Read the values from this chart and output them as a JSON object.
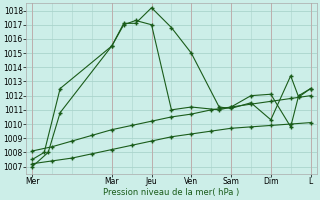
{
  "title": "Pression niveau de la mer( hPa )",
  "bg_color": "#cceee8",
  "grid_color": "#aad4cc",
  "line_color": "#1a5c1a",
  "ylim": [
    1006.5,
    1018.5
  ],
  "yticks": [
    1007,
    1008,
    1009,
    1010,
    1011,
    1012,
    1013,
    1014,
    1015,
    1016,
    1017,
    1018
  ],
  "xlabels": [
    "Mer",
    "Mar",
    "Jeu",
    "Ven",
    "Sam",
    "Dim",
    "L"
  ],
  "x_positions": [
    0,
    2,
    3,
    4,
    5,
    6,
    7
  ],
  "line1_x": [
    0,
    0.4,
    0.7,
    2.0,
    2.3,
    2.6,
    3.0,
    3.5,
    4.0,
    4.7,
    5.0,
    5.5,
    6.0,
    6.5,
    6.7,
    7.0
  ],
  "line1_y": [
    1007.0,
    1008.0,
    1010.8,
    1015.5,
    1017.1,
    1017.1,
    1018.2,
    1016.8,
    1015.0,
    1011.2,
    1011.1,
    1011.5,
    1010.3,
    1013.4,
    1011.9,
    1012.5
  ],
  "line2_x": [
    0,
    0.3,
    0.7,
    2.0,
    2.3,
    2.6,
    3.0,
    3.5,
    4.0,
    4.7,
    5.0,
    5.5,
    6.0,
    6.5,
    6.7,
    7.0
  ],
  "line2_y": [
    1007.5,
    1008.0,
    1012.5,
    1015.5,
    1017.0,
    1017.3,
    1017.0,
    1011.0,
    1011.2,
    1011.0,
    1011.2,
    1012.0,
    1012.1,
    1009.8,
    1012.0,
    1012.5
  ],
  "line3_x": [
    0,
    0.5,
    1,
    1.5,
    2,
    2.5,
    3,
    3.5,
    4,
    4.5,
    5,
    5.5,
    6,
    6.5,
    7
  ],
  "line3_y": [
    1008.1,
    1008.4,
    1008.8,
    1009.2,
    1009.6,
    1009.9,
    1010.2,
    1010.5,
    1010.7,
    1011.0,
    1011.2,
    1011.4,
    1011.6,
    1011.8,
    1012.0
  ],
  "line4_x": [
    0,
    0.5,
    1,
    1.5,
    2,
    2.5,
    3,
    3.5,
    4,
    4.5,
    5,
    5.5,
    6,
    6.5,
    7
  ],
  "line4_y": [
    1007.2,
    1007.4,
    1007.6,
    1007.9,
    1008.2,
    1008.5,
    1008.8,
    1009.1,
    1009.3,
    1009.5,
    1009.7,
    1009.8,
    1009.9,
    1010.0,
    1010.1
  ]
}
